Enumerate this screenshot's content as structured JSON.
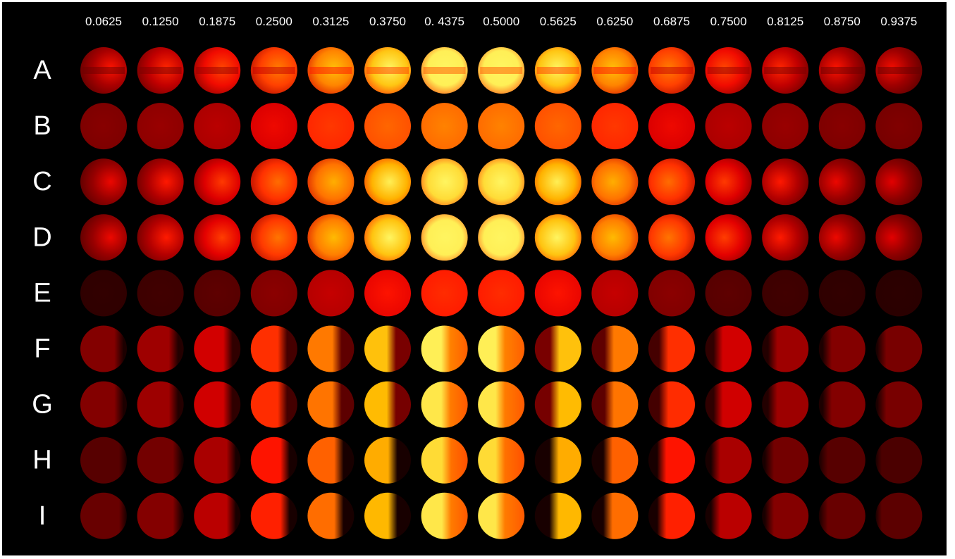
{
  "columns": [
    "0.0625",
    "0.1250",
    "0.1875",
    "0.2500",
    "0.3125",
    "0.3750",
    "0. 4375",
    "0.5000",
    "0.5625",
    "0.6250",
    "0.6875",
    "0.7500",
    "0.8125",
    "0.8750",
    "0.9375"
  ],
  "rows": [
    "A",
    "B",
    "C",
    "D",
    "E",
    "F",
    "G",
    "H",
    "I"
  ]
}
